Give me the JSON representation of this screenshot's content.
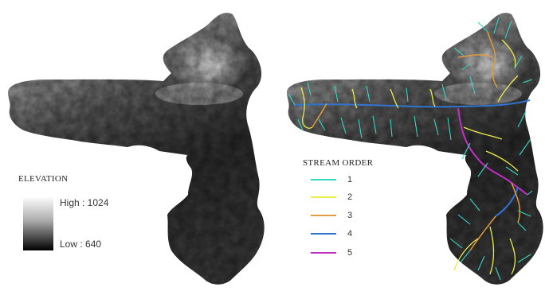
{
  "elevation_legend": {
    "title": "ELEVATION",
    "high_label": "High : 1024",
    "low_label": "Low : 640",
    "high_value": 1024,
    "low_value": 640,
    "ramp_colors": [
      "#ffffff",
      "#000000"
    ]
  },
  "stream_legend": {
    "title": "STREAM ORDER",
    "items": [
      {
        "label": "1",
        "color": "#35d6c4"
      },
      {
        "label": "2",
        "color": "#ecec4a"
      },
      {
        "label": "3",
        "color": "#e39b3f"
      },
      {
        "label": "4",
        "color": "#2f74d0"
      },
      {
        "label": "5",
        "color": "#c22fc6"
      }
    ]
  }
}
